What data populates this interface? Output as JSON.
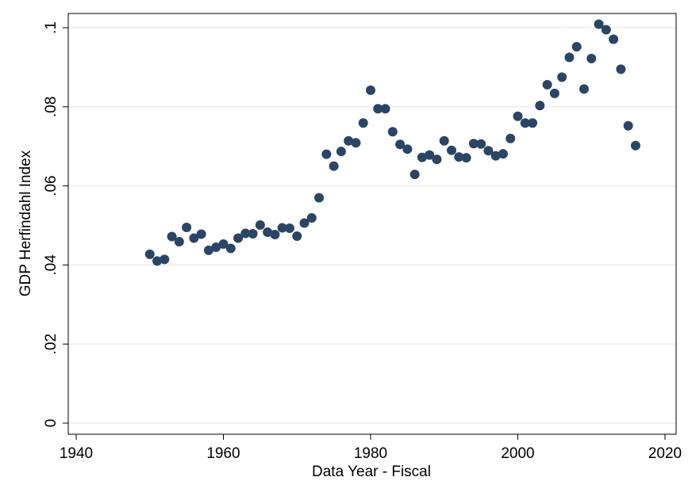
{
  "chart_data": {
    "type": "scatter",
    "title": "",
    "xlabel": "Data Year - Fiscal",
    "ylabel": "GDP Herfindahl Index",
    "xlim": [
      1940,
      2020
    ],
    "ylim": [
      0,
      0.1
    ],
    "x_ticks": [
      1940,
      1960,
      1980,
      2000,
      2020
    ],
    "x_tick_labels": [
      "1940",
      "1960",
      "1980",
      "2000",
      "2020"
    ],
    "y_ticks": [
      0,
      0.02,
      0.04,
      0.06,
      0.08,
      0.1
    ],
    "y_tick_labels": [
      "0",
      ".02",
      ".04",
      ".06",
      ".08",
      ".1"
    ],
    "grid": "horizontal",
    "legend": "none",
    "marker_color": "#2a4565",
    "x": [
      1950,
      1951,
      1952,
      1953,
      1954,
      1955,
      1956,
      1957,
      1958,
      1959,
      1960,
      1961,
      1962,
      1963,
      1964,
      1965,
      1966,
      1967,
      1968,
      1969,
      1970,
      1971,
      1972,
      1973,
      1974,
      1975,
      1976,
      1977,
      1978,
      1979,
      1980,
      1981,
      1982,
      1983,
      1984,
      1985,
      1986,
      1987,
      1988,
      1989,
      1990,
      1991,
      1992,
      1993,
      1994,
      1995,
      1996,
      1997,
      1998,
      1999,
      2000,
      2001,
      2002,
      2003,
      2004,
      2005,
      2006,
      2007,
      2008,
      2009,
      2010,
      2011,
      2012,
      2013,
      2014,
      2015,
      2016
    ],
    "y": [
      0.0427,
      0.041,
      0.0414,
      0.0472,
      0.0459,
      0.0495,
      0.0468,
      0.0478,
      0.0437,
      0.0445,
      0.0453,
      0.0442,
      0.0468,
      0.048,
      0.0479,
      0.0501,
      0.0483,
      0.0477,
      0.0494,
      0.0493,
      0.0473,
      0.0506,
      0.0519,
      0.057,
      0.068,
      0.065,
      0.0687,
      0.0714,
      0.0709,
      0.0759,
      0.0842,
      0.0795,
      0.0795,
      0.0737,
      0.0705,
      0.0693,
      0.0629,
      0.0672,
      0.0678,
      0.0667,
      0.0714,
      0.069,
      0.0673,
      0.0671,
      0.0707,
      0.0706,
      0.0689,
      0.0676,
      0.0681,
      0.072,
      0.0776,
      0.0759,
      0.0759,
      0.0803,
      0.0856,
      0.0834,
      0.0875,
      0.0925,
      0.0952,
      0.0845,
      0.0922,
      0.1009,
      0.0995,
      0.0971,
      0.0895,
      0.0752,
      0.0702
    ]
  }
}
